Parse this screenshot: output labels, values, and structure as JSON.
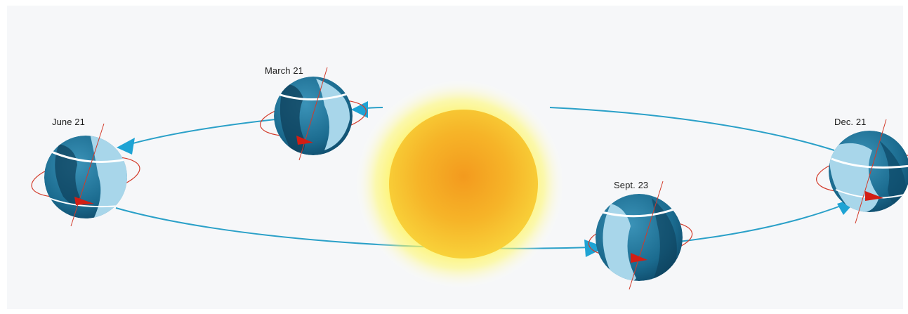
{
  "diagram": {
    "positions": [
      {
        "id": "june",
        "label": "June 21"
      },
      {
        "id": "march",
        "label": "March 21"
      },
      {
        "id": "sept",
        "label": "Sept. 23"
      },
      {
        "id": "dec",
        "label": "Dec. 21"
      }
    ]
  },
  "colors": {
    "orbit": "#2aa0c8",
    "arrow": "#1ea3d4",
    "sun_core": "#f4a820",
    "sun_glow": "#fff35a",
    "earth_ocean": "#1d6f93",
    "earth_day": "#a8d6ea",
    "earth_night": "#0f4664",
    "rotation_ring": "#d23a2a",
    "rotation_arrow": "#d21e14"
  }
}
